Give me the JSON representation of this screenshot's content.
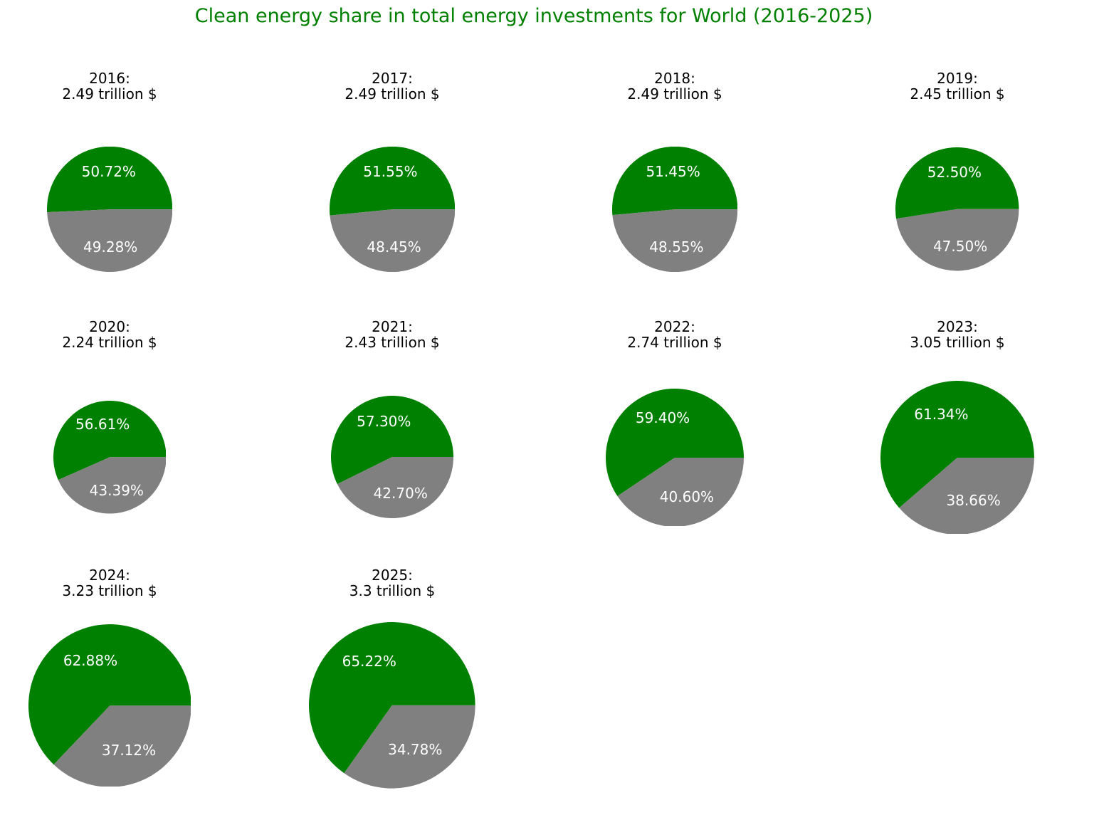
{
  "header": {
    "title": "Clean energy share in total energy investments for World (2016-2025)",
    "title_color": "#008000"
  },
  "chart_data": {
    "type": "pie",
    "title": "Clean energy share in total energy investments for World (2016-2025)",
    "grid_columns": 4,
    "start_angle_deg": 0,
    "direction": "counterclockwise",
    "pct_label_distance": 0.6,
    "radius_encodes": "total_trillion_usd",
    "colors": {
      "clean_energy": "#008000",
      "other_energy": "#808080",
      "pct_label": "#ffffff",
      "pie_title": "#000000",
      "background": "#ffffff"
    },
    "pies": [
      {
        "year": "2016",
        "year_label": "2016:",
        "total_label": "2.49 trillion $",
        "total_trillion_usd": 2.49,
        "clean_pct": 50.72,
        "other_pct": 49.28
      },
      {
        "year": "2017",
        "year_label": "2017:",
        "total_label": "2.49 trillion $",
        "total_trillion_usd": 2.49,
        "clean_pct": 51.55,
        "other_pct": 48.45
      },
      {
        "year": "2018",
        "year_label": "2018:",
        "total_label": "2.49 trillion $",
        "total_trillion_usd": 2.49,
        "clean_pct": 51.45,
        "other_pct": 48.55
      },
      {
        "year": "2019",
        "year_label": "2019:",
        "total_label": "2.45 trillion $",
        "total_trillion_usd": 2.45,
        "clean_pct": 52.5,
        "other_pct": 47.5
      },
      {
        "year": "2020",
        "year_label": "2020:",
        "total_label": "2.24 trillion $",
        "total_trillion_usd": 2.24,
        "clean_pct": 56.61,
        "other_pct": 43.39
      },
      {
        "year": "2021",
        "year_label": "2021:",
        "total_label": "2.43 trillion $",
        "total_trillion_usd": 2.43,
        "clean_pct": 57.3,
        "other_pct": 42.7
      },
      {
        "year": "2022",
        "year_label": "2022:",
        "total_label": "2.74 trillion $",
        "total_trillion_usd": 2.74,
        "clean_pct": 59.4,
        "other_pct": 40.6
      },
      {
        "year": "2023",
        "year_label": "2023:",
        "total_label": "3.05 trillion $",
        "total_trillion_usd": 3.05,
        "clean_pct": 61.34,
        "other_pct": 38.66
      },
      {
        "year": "2024",
        "year_label": "2024:",
        "total_label": "3.23 trillion $",
        "total_trillion_usd": 3.23,
        "clean_pct": 62.88,
        "other_pct": 37.12
      },
      {
        "year": "2025",
        "year_label": "2025:",
        "total_label": "3.3 trillion $",
        "total_trillion_usd": 3.3,
        "clean_pct": 65.22,
        "other_pct": 34.78
      }
    ]
  }
}
